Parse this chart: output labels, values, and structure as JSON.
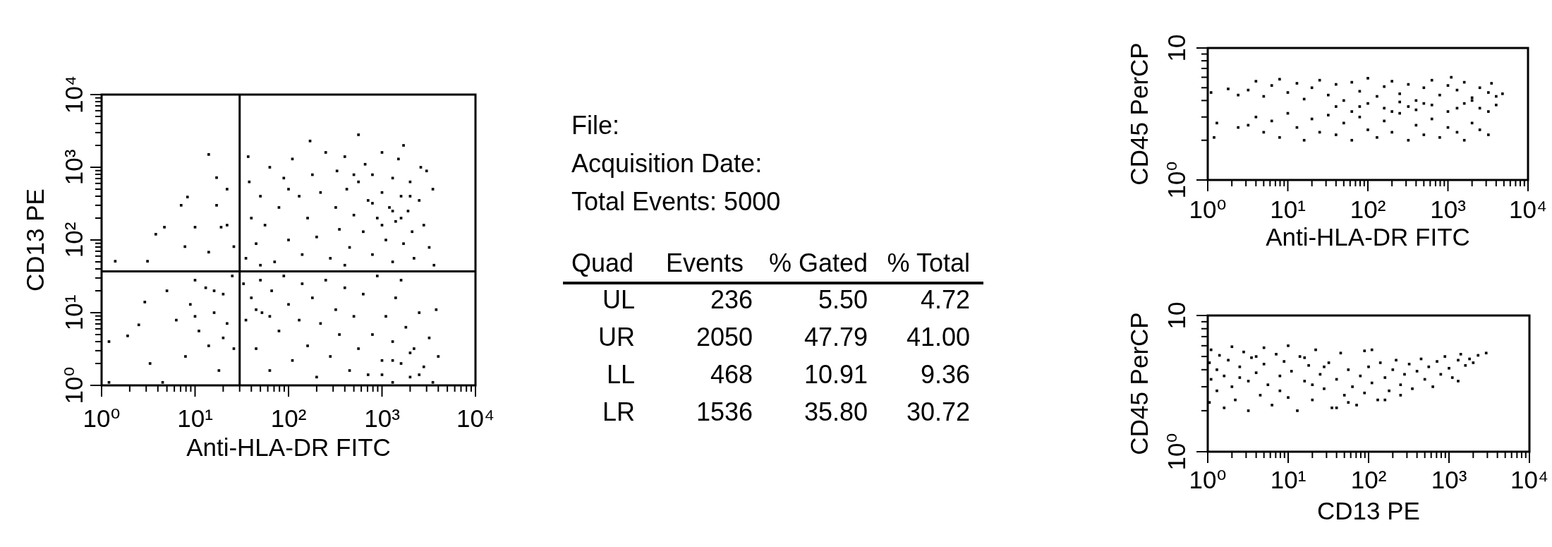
{
  "chart_data": [
    {
      "type": "scatter",
      "xlabel": "Anti-HLA-DR FITC",
      "ylabel": "CD13 PE",
      "log": "xy",
      "color": "#000000",
      "marker": "square",
      "xlim": [
        1,
        10000
      ],
      "ylim": [
        1,
        10000
      ],
      "xticks": [
        {
          "value": 1,
          "label": "10⁰"
        },
        {
          "value": 2,
          "label": null
        },
        {
          "value": 3,
          "label": null
        },
        {
          "value": 4,
          "label": null
        },
        {
          "value": 5,
          "label": null
        },
        {
          "value": 6,
          "label": null
        },
        {
          "value": 7,
          "label": null
        },
        {
          "value": 8,
          "label": null
        },
        {
          "value": 9,
          "label": null
        },
        {
          "value": 10,
          "label": "10¹"
        },
        {
          "value": 20,
          "label": null
        },
        {
          "value": 30,
          "label": null
        },
        {
          "value": 40,
          "label": null
        },
        {
          "value": 50,
          "label": null
        },
        {
          "value": 60,
          "label": null
        },
        {
          "value": 70,
          "label": null
        },
        {
          "value": 80,
          "label": null
        },
        {
          "value": 90,
          "label": null
        },
        {
          "value": 100,
          "label": "10²"
        },
        {
          "value": 200,
          "label": null
        },
        {
          "value": 300,
          "label": null
        },
        {
          "value": 400,
          "label": null
        },
        {
          "value": 500,
          "label": null
        },
        {
          "value": 600,
          "label": null
        },
        {
          "value": 700,
          "label": null
        },
        {
          "value": 800,
          "label": null
        },
        {
          "value": 900,
          "label": null
        },
        {
          "value": 1000,
          "label": "10³"
        },
        {
          "value": 2000,
          "label": null
        },
        {
          "value": 3000,
          "label": null
        },
        {
          "value": 4000,
          "label": null
        },
        {
          "value": 5000,
          "label": null
        },
        {
          "value": 6000,
          "label": null
        },
        {
          "value": 7000,
          "label": null
        },
        {
          "value": 8000,
          "label": null
        },
        {
          "value": 9000,
          "label": null
        },
        {
          "value": 10000,
          "label": "10⁴"
        }
      ],
      "yticks": [
        {
          "value": 1,
          "label": "10⁰"
        },
        {
          "value": 2,
          "label": null
        },
        {
          "value": 3,
          "label": null
        },
        {
          "value": 4,
          "label": null
        },
        {
          "value": 5,
          "label": null
        },
        {
          "value": 6,
          "label": null
        },
        {
          "value": 7,
          "label": null
        },
        {
          "value": 8,
          "label": null
        },
        {
          "value": 9,
          "label": null
        },
        {
          "value": 10,
          "label": "10¹"
        },
        {
          "value": 20,
          "label": null
        },
        {
          "value": 30,
          "label": null
        },
        {
          "value": 40,
          "label": null
        },
        {
          "value": 50,
          "label": null
        },
        {
          "value": 60,
          "label": null
        },
        {
          "value": 70,
          "label": null
        },
        {
          "value": 80,
          "label": null
        },
        {
          "value": 90,
          "label": null
        },
        {
          "value": 100,
          "label": "10²"
        },
        {
          "value": 200,
          "label": null
        },
        {
          "value": 300,
          "label": null
        },
        {
          "value": 400,
          "label": null
        },
        {
          "value": 500,
          "label": null
        },
        {
          "value": 600,
          "label": null
        },
        {
          "value": 700,
          "label": null
        },
        {
          "value": 800,
          "label": null
        },
        {
          "value": 900,
          "label": null
        },
        {
          "value": 1000,
          "label": "10³"
        },
        {
          "value": 2000,
          "label": null
        },
        {
          "value": 3000,
          "label": null
        },
        {
          "value": 4000,
          "label": null
        },
        {
          "value": 5000,
          "label": null
        },
        {
          "value": 6000,
          "label": null
        },
        {
          "value": 7000,
          "label": null
        },
        {
          "value": 8000,
          "label": null
        },
        {
          "value": 9000,
          "label": null
        },
        {
          "value": 10000,
          "label": "10⁴"
        }
      ],
      "ref_lines": [
        {
          "axis": "x",
          "value": 30
        },
        {
          "axis": "y",
          "value": 37
        }
      ],
      "x": [
        35,
        40,
        38,
        37,
        45,
        50,
        56,
        63,
        71,
        79,
        89,
        100,
        110,
        130,
        140,
        160,
        170,
        180,
        200,
        220,
        250,
        280,
        320,
        330,
        350,
        400,
        420,
        450,
        500,
        560,
        560,
        630,
        660,
        710,
        790,
        790,
        890,
        1000,
        1000,
        1100,
        1200,
        1300,
        1300,
        1400,
        1500,
        1600,
        1700,
        1700,
        1900,
        2000,
        2100,
        2200,
        2500,
        2600,
        2800,
        3200,
        3500,
        3600,
        50,
        100,
        400,
        3000,
        1300,
        1600,
        790,
        2000,
        1000,
        500,
        33,
        35,
        40,
        45,
        50,
        52,
        63,
        66,
        79,
        89,
        100,
        110,
        130,
        140,
        160,
        180,
        200,
        220,
        250,
        280,
        320,
        350,
        400,
        450,
        500,
        560,
        630,
        710,
        790,
        890,
        1000,
        1100,
        1300,
        1300,
        1400,
        1600,
        1800,
        2000,
        2200,
        2500,
        2800,
        3200,
        3500,
        3800,
        4000,
        1600,
        1000,
        2000,
        2500,
        1300,
        45,
        63,
        1.2,
        1.9,
        2.9,
        2.5,
        3.3,
        1.2,
        5,
        6.3,
        7.9,
        8.9,
        11,
        13,
        14,
        16,
        18,
        20,
        22,
        25,
        26,
        10,
        4.5,
        16,
        10,
        20,
        3.8,
        4.7,
        7.1,
        8.3,
        3.1,
        10,
        17,
        22,
        19,
        26,
        14,
        17,
        1.4,
        14,
        7.8,
        22
      ],
      "values": [
        56,
        200,
        630,
        1400,
        89,
        400,
        160,
        1000,
        50,
        280,
        710,
        100,
        1300,
        400,
        63,
        200,
        2300,
        790,
        110,
        450,
        1600,
        56,
        280,
        890,
        140,
        1400,
        500,
        79,
        220,
        2800,
        630,
        130,
        1100,
        350,
        63,
        790,
        200,
        450,
        1600,
        100,
        280,
        710,
        50,
        180,
        1300,
        400,
        89,
        2000,
        250,
        630,
        130,
        56,
        350,
        1000,
        160,
        79,
        500,
        45,
        45,
        500,
        45,
        890,
        250,
        200,
        320,
        400,
        160,
        790,
        25,
        7.9,
        16,
        3.2,
        28,
        10,
        1.6,
        20,
        5.6,
        32,
        13,
        2.2,
        7.9,
        25,
        3.5,
        16,
        1.3,
        7.1,
        28,
        2.5,
        11,
        5,
        22,
        1.6,
        8.9,
        3.2,
        18,
        1.4,
        5,
        32,
        2.2,
        8.9,
        1.1,
        4,
        16,
        2,
        6.3,
        1.3,
        3.2,
        10,
        1.8,
        4.5,
        1.1,
        11,
        2.5,
        28,
        1.4,
        2.8,
        1.4,
        2.2,
        11,
        8.9,
        4,
        4.8,
        14,
        6.8,
        2,
        1.1,
        20,
        7.9,
        2.5,
        13,
        5.6,
        22,
        3.5,
        10,
        1.6,
        18,
        7.1,
        32,
        3.2,
        28,
        1.1,
        20,
        8.9,
        4.5,
        120,
        150,
        300,
        390,
        51,
        150,
        300,
        500,
        150,
        81,
        1500,
        720,
        51,
        68,
        81,
        160
      ]
    },
    {
      "type": "other",
      "annotations": [
        "File:",
        "Acquisition Date:",
        "Total Events: 5000",
        "Quad",
        "Events",
        "% Gated",
        "% Total",
        "UL",
        "236",
        "5.50",
        "4.72",
        "UR",
        "2050",
        "47.79",
        "41.00",
        "LL",
        "468",
        "10.91",
        "9.36",
        "LR",
        "1536",
        "35.80",
        "30.72"
      ]
    },
    {
      "type": "scatter",
      "xlabel": "Anti-HLA-DR FITC",
      "ylabel": "CD45 PerCP",
      "log": "xy",
      "color": "#000000",
      "marker": "square",
      "xlim": [
        1,
        10000
      ],
      "ylim": [
        1,
        10
      ],
      "xticks": [
        {
          "value": 1,
          "label": "10⁰"
        },
        {
          "value": 2,
          "label": null
        },
        {
          "value": 3,
          "label": null
        },
        {
          "value": 4,
          "label": null
        },
        {
          "value": 5,
          "label": null
        },
        {
          "value": 6,
          "label": null
        },
        {
          "value": 7,
          "label": null
        },
        {
          "value": 8,
          "label": null
        },
        {
          "value": 9,
          "label": null
        },
        {
          "value": 10,
          "label": "10¹"
        },
        {
          "value": 20,
          "label": null
        },
        {
          "value": 30,
          "label": null
        },
        {
          "value": 40,
          "label": null
        },
        {
          "value": 50,
          "label": null
        },
        {
          "value": 60,
          "label": null
        },
        {
          "value": 70,
          "label": null
        },
        {
          "value": 80,
          "label": null
        },
        {
          "value": 90,
          "label": null
        },
        {
          "value": 100,
          "label": "10²"
        },
        {
          "value": 200,
          "label": null
        },
        {
          "value": 300,
          "label": null
        },
        {
          "value": 400,
          "label": null
        },
        {
          "value": 500,
          "label": null
        },
        {
          "value": 600,
          "label": null
        },
        {
          "value": 700,
          "label": null
        },
        {
          "value": 800,
          "label": null
        },
        {
          "value": 900,
          "label": null
        },
        {
          "value": 1000,
          "label": "10³"
        },
        {
          "value": 2000,
          "label": null
        },
        {
          "value": 3000,
          "label": null
        },
        {
          "value": 4000,
          "label": null
        },
        {
          "value": 5000,
          "label": null
        },
        {
          "value": 6000,
          "label": null
        },
        {
          "value": 7000,
          "label": null
        },
        {
          "value": 8000,
          "label": null
        },
        {
          "value": 9000,
          "label": null
        },
        {
          "value": 10000,
          "label": "10⁴"
        }
      ],
      "yticks": [
        {
          "value": 1,
          "label": "10⁰"
        },
        {
          "value": 2,
          "label": null
        },
        {
          "value": 3,
          "label": null
        },
        {
          "value": 4,
          "label": null
        },
        {
          "value": 5,
          "label": null
        },
        {
          "value": 6,
          "label": null
        },
        {
          "value": 7,
          "label": null
        },
        {
          "value": 8,
          "label": null
        },
        {
          "value": 9,
          "label": null
        },
        10
      ],
      "x": [
        3.2,
        4,
        5,
        6.3,
        7.9,
        10,
        13,
        16,
        20,
        25,
        32,
        40,
        50,
        63,
        79,
        100,
        130,
        160,
        200,
        250,
        320,
        400,
        500,
        630,
        790,
        1000,
        1300,
        1600,
        2000,
        2500,
        3200,
        4000,
        4800,
        3500,
        1100,
        3.2,
        4,
        5,
        6.3,
        7.9,
        10,
        13,
        16,
        20,
        25,
        32,
        40,
        50,
        63,
        79,
        100,
        130,
        160,
        200,
        250,
        320,
        400,
        500,
        630,
        790,
        1000,
        1300,
        1600,
        2000,
        2500,
        3200,
        40,
        63,
        100,
        160,
        250,
        400,
        630,
        1000,
        1600,
        2500,
        4000,
        79,
        320,
        1300,
        200,
        500,
        2000,
        3200,
        1.1,
        1.8,
        1.2,
        1.3,
        2.4,
        2.4
      ],
      "values": [
        4.8,
        5.6,
        4.3,
        5.2,
        5.8,
        4.6,
        5.4,
        4.1,
        5,
        5.7,
        4.4,
        5.3,
        4,
        5.5,
        4.7,
        5.9,
        4.3,
        5.1,
        5.6,
        4.5,
        5.3,
        4,
        5,
        5.7,
        4.4,
        5.2,
        4.8,
        5.5,
        4.2,
        5,
        4.6,
        4.3,
        4.5,
        5.4,
        6,
        2.6,
        3,
        2.3,
        2.8,
        2.1,
        3.2,
        2.5,
        2,
        2.9,
        2.3,
        3.1,
        2.2,
        2.7,
        2,
        3,
        2.4,
        2.1,
        2.8,
        2.3,
        3.2,
        2,
        2.6,
        2.2,
        2.9,
        2.1,
        2.5,
        2.3,
        2,
        2.7,
        2.4,
        2.2,
        3.6,
        3.3,
        3.8,
        3.5,
        3.9,
        3.4,
        3.7,
        3.3,
        3.8,
        3.5,
        3.7,
        3.6,
        3.6,
        3.5,
        3.3,
        3.8,
        4,
        3.3,
        4.6,
        4.9,
        2.1,
        2.7,
        4.4,
        2.5
      ]
    },
    {
      "type": "scatter",
      "xlabel": "CD13 PE",
      "ylabel": "CD45 PerCP",
      "log": "xy",
      "color": "#000000",
      "marker": "square",
      "xlim": [
        1,
        10000
      ],
      "ylim": [
        1,
        10
      ],
      "xticks": [
        {
          "value": 1,
          "label": "10⁰"
        },
        {
          "value": 2,
          "label": null
        },
        {
          "value": 3,
          "label": null
        },
        {
          "value": 4,
          "label": null
        },
        {
          "value": 5,
          "label": null
        },
        {
          "value": 6,
          "label": null
        },
        {
          "value": 7,
          "label": null
        },
        {
          "value": 8,
          "label": null
        },
        {
          "value": 9,
          "label": null
        },
        {
          "value": 10,
          "label": "10¹"
        },
        {
          "value": 20,
          "label": null
        },
        {
          "value": 30,
          "label": null
        },
        {
          "value": 40,
          "label": null
        },
        {
          "value": 50,
          "label": null
        },
        {
          "value": 60,
          "label": null
        },
        {
          "value": 70,
          "label": null
        },
        {
          "value": 80,
          "label": null
        },
        {
          "value": 90,
          "label": null
        },
        {
          "value": 100,
          "label": "10²"
        },
        {
          "value": 200,
          "label": null
        },
        {
          "value": 300,
          "label": null
        },
        {
          "value": 400,
          "label": null
        },
        {
          "value": 500,
          "label": null
        },
        {
          "value": 600,
          "label": null
        },
        {
          "value": 700,
          "label": null
        },
        {
          "value": 800,
          "label": null
        },
        {
          "value": 900,
          "label": null
        },
        {
          "value": 1000,
          "label": "10³"
        },
        {
          "value": 2000,
          "label": null
        },
        {
          "value": 3000,
          "label": null
        },
        {
          "value": 4000,
          "label": null
        },
        {
          "value": 5000,
          "label": null
        },
        {
          "value": 6000,
          "label": null
        },
        {
          "value": 7000,
          "label": null
        },
        {
          "value": 8000,
          "label": null
        },
        {
          "value": 9000,
          "label": null
        },
        {
          "value": 10000,
          "label": "10⁴"
        }
      ],
      "yticks": [
        {
          "value": 1,
          "label": "10⁰"
        },
        {
          "value": 2,
          "label": null
        },
        {
          "value": 3,
          "label": null
        },
        {
          "value": 4,
          "label": null
        },
        {
          "value": 5,
          "label": null
        },
        {
          "value": 6,
          "label": null
        },
        {
          "value": 7,
          "label": null
        },
        {
          "value": 8,
          "label": null
        },
        {
          "value": 9,
          "label": null
        },
        10
      ],
      "x": [
        1.05,
        1.05,
        1.1,
        1.1,
        1.3,
        1.3,
        1.4,
        1.6,
        1.6,
        1.8,
        2,
        2,
        2.2,
        2.5,
        2.8,
        3.2,
        3.2,
        3.5,
        4,
        4.5,
        5,
        5,
        5.6,
        6.3,
        7.1,
        7.9,
        8.9,
        10,
        10,
        11,
        13,
        14,
        16,
        18,
        20,
        22,
        25,
        28,
        32,
        35,
        40,
        45,
        50,
        56,
        63,
        71,
        79,
        89,
        110,
        40,
        20,
        7.9,
        4,
        2.5,
        16,
        28,
        56,
        89,
        100,
        110,
        130,
        140,
        160,
        180,
        200,
        220,
        250,
        280,
        320,
        350,
        400,
        450,
        500,
        560,
        630,
        710,
        790,
        890,
        1000,
        1100,
        1300,
        1400,
        1600,
        1800,
        2000,
        2300,
        2900,
        250,
        160,
        1300
      ],
      "values": [
        2.3,
        4.5,
        3.4,
        5.6,
        2.8,
        4,
        5.1,
        2.1,
        3.6,
        4.7,
        5.9,
        3,
        2.4,
        4.2,
        5.4,
        3.3,
        2,
        4.9,
        3.8,
        2.6,
        5.8,
        4.4,
        3.1,
        2.2,
        5.2,
        3.6,
        4.6,
        2.5,
        6,
        3.9,
        2,
        5,
        3.3,
        4.3,
        2.4,
        5.6,
        3.7,
        2.9,
        4.5,
        2.1,
        3.4,
        5.3,
        2.6,
        4,
        3,
        2.2,
        3.6,
        5.5,
        5.6,
        2.1,
        3.1,
        2.8,
        5,
        3.5,
        4.9,
        4.2,
        2.3,
        2.7,
        4.2,
        3.2,
        2.4,
        4.5,
        3.5,
        2.8,
        4,
        4.7,
        3.1,
        3.7,
        4.4,
        2.9,
        3.9,
        4.8,
        3.4,
        4.2,
        3,
        4.6,
        3.7,
        5,
        4.1,
        3.5,
        4.7,
        5.2,
        4.3,
        4.8,
        4.5,
        5.1,
        5.3,
        2.6,
        2.4,
        3.3
      ]
    }
  ]
}
